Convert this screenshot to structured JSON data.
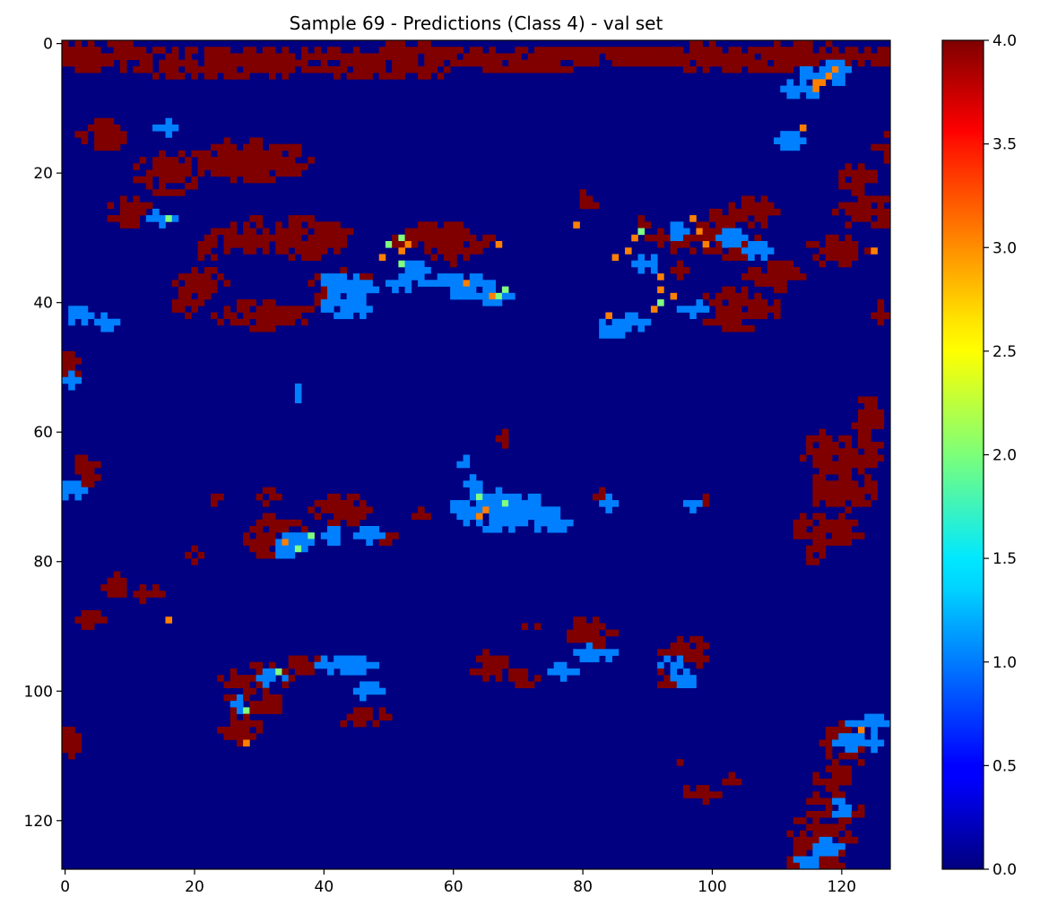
{
  "chart_data": {
    "type": "heatmap",
    "title": "Sample 69 - Predictions (Class 4) - val set",
    "xlabel": "",
    "ylabel": "",
    "grid_size": [
      128,
      128
    ],
    "xlim": [
      -0.5,
      127.5
    ],
    "ylim": [
      127.5,
      -0.5
    ],
    "x_ticks": [
      0,
      20,
      40,
      60,
      80,
      100,
      120
    ],
    "x_tick_labels": [
      "0",
      "20",
      "40",
      "60",
      "80",
      "100",
      "120"
    ],
    "y_ticks": [
      0,
      20,
      40,
      60,
      80,
      100,
      120
    ],
    "y_tick_labels": [
      "0",
      "20",
      "40",
      "60",
      "80",
      "100",
      "120"
    ],
    "colormap": "jet",
    "value_range": [
      0.0,
      4.0
    ],
    "background_value": 0,
    "colorbar": {
      "ticks": [
        0.0,
        0.5,
        1.0,
        1.5,
        2.0,
        2.5,
        3.0,
        3.5,
        4.0
      ],
      "tick_labels": [
        "0.0",
        "0.5",
        "1.0",
        "1.5",
        "2.0",
        "2.5",
        "3.0",
        "3.5",
        "4.0"
      ],
      "placement": "right"
    },
    "class4_blobs": [
      [
        4,
        50,
        10,
        1.5
      ],
      [
        2,
        60,
        11,
        1.2
      ],
      [
        3,
        71,
        9,
        1.5
      ],
      [
        2,
        79,
        11,
        1
      ],
      [
        2,
        52,
        8,
        2
      ],
      [
        2,
        90,
        13,
        1.5
      ],
      [
        2,
        46,
        13,
        1
      ],
      [
        2,
        1,
        16,
        2
      ],
      [
        2,
        117,
        18,
        1
      ],
      [
        2,
        102,
        20,
        1
      ],
      [
        2,
        81,
        23,
        1
      ],
      [
        3,
        23,
        20,
        2
      ],
      [
        2,
        108,
        22,
        2
      ],
      [
        14,
        6,
        4,
        2
      ],
      [
        26,
        10,
        3,
        2
      ],
      [
        20,
        16,
        5,
        3
      ],
      [
        40,
        19,
        2,
        2
      ],
      [
        37,
        21,
        4,
        2
      ],
      [
        32,
        22,
        1,
        2
      ],
      [
        18,
        28,
        11,
        3
      ],
      [
        30,
        29,
        8,
        2
      ],
      [
        42,
        31,
        8,
        2
      ],
      [
        41,
        104,
        6,
        3
      ],
      [
        36,
        110,
        5,
        2
      ],
      [
        32,
        119,
        5,
        2
      ],
      [
        21,
        122,
        3,
        2
      ],
      [
        26,
        124,
        6,
        2
      ],
      [
        16,
        127,
        2,
        2
      ],
      [
        50,
        0,
        2,
        2
      ],
      [
        27,
        30,
        1,
        1
      ],
      [
        30,
        38,
        6,
        3
      ],
      [
        38,
        43,
        5,
        3
      ],
      [
        30,
        58,
        8,
        2
      ],
      [
        32,
        60,
        4,
        2
      ],
      [
        24,
        81,
        2,
        1
      ],
      [
        28,
        89,
        1,
        1
      ],
      [
        30,
        97,
        7,
        2
      ],
      [
        26,
        106,
        4,
        2
      ],
      [
        35,
        95,
        1,
        1
      ],
      [
        28,
        101,
        2,
        2
      ],
      [
        31,
        103,
        5,
        2
      ],
      [
        42,
        126,
        1,
        2
      ],
      [
        58,
        124,
        2,
        3
      ],
      [
        63,
        120,
        6,
        3
      ],
      [
        69,
        120,
        5,
        3
      ],
      [
        75,
        116,
        4,
        2
      ],
      [
        75,
        120,
        3,
        2
      ],
      [
        78,
        116,
        2,
        2
      ],
      [
        70,
        31,
        2,
        1
      ],
      [
        66,
        3,
        2,
        2
      ],
      [
        72,
        43,
        5,
        2
      ],
      [
        75,
        33,
        4,
        2
      ],
      [
        77,
        31,
        3,
        2
      ],
      [
        76,
        49,
        2,
        1
      ],
      [
        61,
        68,
        1,
        1
      ],
      [
        70,
        83,
        1,
        1
      ],
      [
        70,
        99,
        1,
        1
      ],
      [
        73,
        55,
        1,
        1
      ],
      [
        91,
        81,
        4,
        2
      ],
      [
        93,
        82,
        2,
        1
      ],
      [
        96,
        66,
        3,
        2
      ],
      [
        98,
        93,
        2,
        1
      ],
      [
        94,
        96,
        4,
        2
      ],
      [
        98,
        71,
        2,
        1
      ],
      [
        98,
        30,
        6,
        2
      ],
      [
        102,
        29,
        5,
        2
      ],
      [
        96,
        37,
        3,
        1
      ],
      [
        104,
        46,
        5,
        1
      ],
      [
        106,
        27,
        3,
        2
      ],
      [
        108,
        121,
        4,
        3
      ],
      [
        113,
        119,
        3,
        2
      ],
      [
        118,
        119,
        4,
        3
      ],
      [
        122,
        117,
        5,
        3
      ],
      [
        126,
        116,
        4,
        3
      ],
      [
        116,
        98,
        3,
        1
      ],
      [
        109,
        120,
        1,
        1
      ],
      [
        111,
        95,
        1,
        1
      ],
      [
        114,
        103,
        1,
        1
      ],
      [
        84,
        8,
        2,
        2
      ],
      [
        85,
        12,
        1,
        1
      ],
      [
        89,
        4,
        2,
        1
      ],
      [
        85,
        14,
        1,
        1
      ],
      [
        90,
        72,
        1,
        1
      ],
      [
        108,
        0,
        2,
        2
      ],
      [
        79,
        20,
        1,
        1
      ],
      [
        70,
        23,
        1,
        1
      ]
    ],
    "class1_blobs": [
      [
        5,
        117,
        4,
        1
      ],
      [
        4,
        118,
        3,
        1
      ],
      [
        7,
        114,
        3,
        1
      ],
      [
        13,
        16,
        2,
        1
      ],
      [
        15,
        112,
        2,
        1
      ],
      [
        30,
        103,
        2,
        1
      ],
      [
        29,
        95,
        2,
        1
      ],
      [
        32,
        107,
        2,
        1
      ],
      [
        34,
        90,
        2,
        1
      ],
      [
        41,
        97,
        2,
        1
      ],
      [
        44,
        85,
        3,
        1.5
      ],
      [
        43,
        88,
        2,
        1
      ],
      [
        37,
        43,
        4,
        1
      ],
      [
        38,
        45,
        4,
        1
      ],
      [
        37,
        53,
        3,
        1
      ],
      [
        39,
        64,
        5,
        1.5
      ],
      [
        37,
        61,
        5,
        1
      ],
      [
        35,
        54,
        2,
        1
      ],
      [
        41,
        44,
        4,
        1
      ],
      [
        40,
        42,
        2,
        1
      ],
      [
        73,
        69,
        8,
        2
      ],
      [
        71,
        70,
        6,
        1.5
      ],
      [
        74,
        75,
        3,
        1
      ],
      [
        70,
        66,
        4,
        1
      ],
      [
        72,
        62,
        3,
        1
      ],
      [
        68,
        64,
        2,
        1
      ],
      [
        65,
        62,
        1,
        1
      ],
      [
        71,
        84,
        1,
        1
      ],
      [
        71,
        97,
        1,
        1
      ],
      [
        77,
        37,
        4,
        1.5
      ],
      [
        76,
        41,
        2,
        1
      ],
      [
        78,
        34,
        2,
        1
      ],
      [
        76,
        47,
        2,
        1
      ],
      [
        54,
        36,
        1,
        1
      ],
      [
        52,
        1,
        1,
        1
      ],
      [
        96,
        43,
        5,
        1
      ],
      [
        98,
        32,
        2,
        1
      ],
      [
        100,
        47,
        2,
        1
      ],
      [
        102,
        27,
        1,
        1
      ],
      [
        94,
        82,
        3,
        1
      ],
      [
        97,
        77,
        2,
        1
      ],
      [
        96,
        94,
        2,
        1
      ],
      [
        98,
        96,
        2,
        1
      ],
      [
        105,
        124,
        3,
        1
      ],
      [
        108,
        122,
        4,
        1
      ],
      [
        118,
        120,
        2,
        1
      ],
      [
        124,
        118,
        2,
        1
      ],
      [
        126,
        115,
        2,
        1
      ],
      [
        27,
        15,
        2,
        1
      ],
      [
        42,
        2,
        2,
        1
      ],
      [
        43,
        6,
        2,
        1
      ],
      [
        69,
        1,
        2,
        1
      ]
    ],
    "accent_cells": [
      [
        6,
        117,
        3
      ],
      [
        5,
        118,
        3
      ],
      [
        6,
        116,
        3
      ],
      [
        7,
        116,
        3
      ],
      [
        4,
        119,
        3
      ],
      [
        13,
        114,
        3
      ],
      [
        27,
        16,
        2
      ],
      [
        31,
        50,
        2
      ],
      [
        30,
        52,
        2
      ],
      [
        31,
        53,
        3
      ],
      [
        32,
        52,
        3
      ],
      [
        33,
        49,
        3
      ],
      [
        34,
        52,
        2
      ],
      [
        38,
        68,
        2
      ],
      [
        39,
        67,
        2
      ],
      [
        39,
        66,
        3
      ],
      [
        37,
        62,
        3
      ],
      [
        27,
        97,
        3
      ],
      [
        29,
        98,
        3
      ],
      [
        31,
        99,
        3
      ],
      [
        30,
        88,
        3
      ],
      [
        32,
        87,
        3
      ],
      [
        33,
        85,
        3
      ],
      [
        29,
        89,
        2
      ],
      [
        36,
        92,
        3
      ],
      [
        38,
        92,
        3
      ],
      [
        39,
        94,
        3
      ],
      [
        41,
        91,
        3
      ],
      [
        42,
        84,
        3
      ],
      [
        40,
        92,
        2
      ],
      [
        72,
        65,
        3
      ],
      [
        71,
        68,
        2
      ],
      [
        70,
        64,
        2
      ],
      [
        73,
        64,
        3
      ],
      [
        76,
        38,
        2
      ],
      [
        78,
        36,
        2
      ],
      [
        77,
        34,
        3
      ],
      [
        89,
        16,
        3
      ],
      [
        97,
        33,
        2
      ],
      [
        103,
        28,
        2
      ],
      [
        108,
        28,
        3
      ],
      [
        106,
        123,
        3
      ],
      [
        28,
        79,
        3
      ],
      [
        32,
        125,
        3
      ],
      [
        31,
        67,
        3
      ]
    ]
  }
}
